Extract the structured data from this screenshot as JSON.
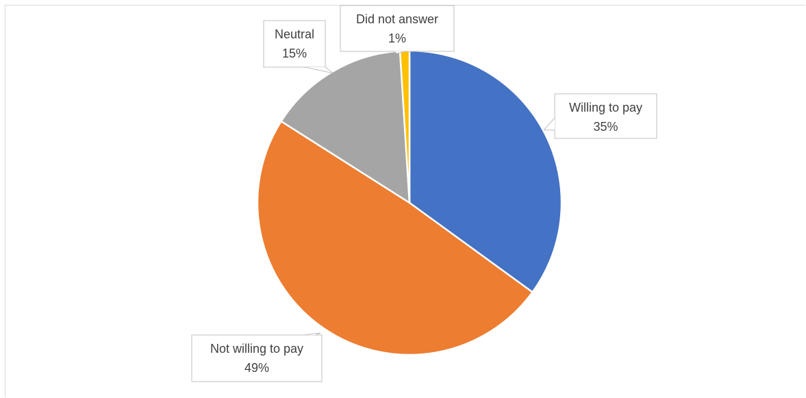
{
  "chart_data": {
    "type": "pie",
    "title": "",
    "slices": [
      {
        "label": "Willing to pay",
        "value": 35,
        "display": "35%",
        "color": "#4472C4"
      },
      {
        "label": "Not willing to pay",
        "value": 49,
        "display": "49%",
        "color": "#ED7D31"
      },
      {
        "label": "Neutral",
        "value": 15,
        "display": "15%",
        "color": "#A5A5A5"
      },
      {
        "label": "Did not answer",
        "value": 1,
        "display": "1%",
        "color": "#FFC000"
      }
    ],
    "start_angle": "12 o'clock",
    "direction": "clockwise",
    "data_labels": "callouts with category name and percentage",
    "legend": "none"
  }
}
